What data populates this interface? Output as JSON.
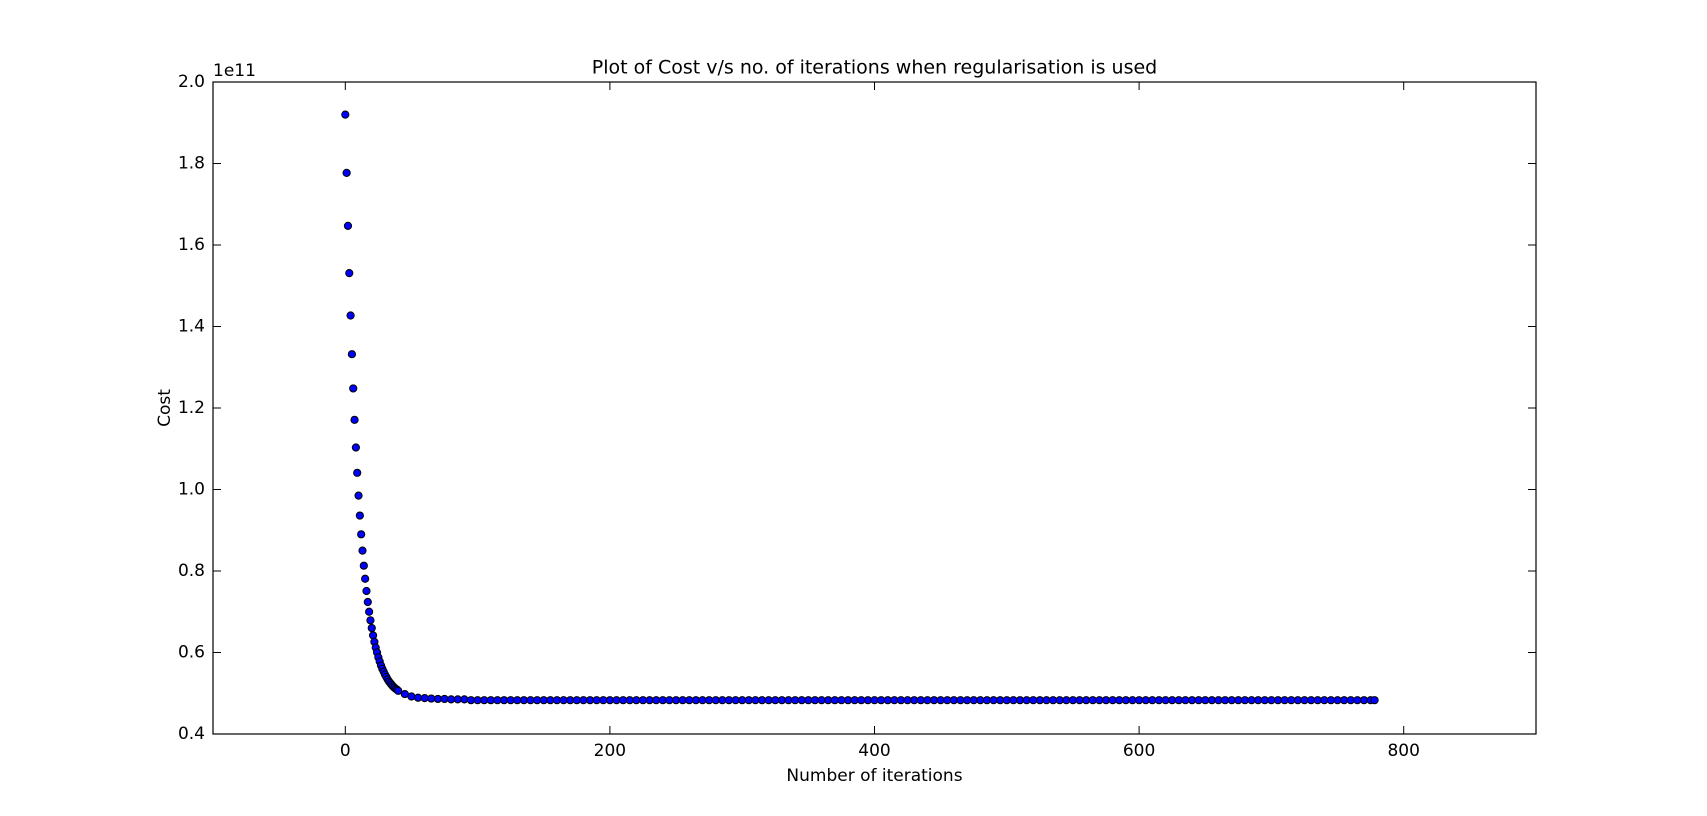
{
  "chart_data": {
    "type": "scatter",
    "title": "Plot of Cost v/s no. of iterations when regularisation is used",
    "x_label": "Number of iterations",
    "y_label": "Cost",
    "y_offset_label": "1e11",
    "color": "#0000ff",
    "edge_color": "#000000",
    "grid": false,
    "xlim": [
      -100,
      900
    ],
    "xticks": [
      0,
      200,
      400,
      600,
      800
    ],
    "ylim": [
      0.4,
      2.0
    ],
    "yticks": [
      0.4,
      0.6,
      0.8,
      {
        "value": 1.0,
        "label": "1.0"
      },
      1.2,
      1.4,
      1.6,
      1.8,
      {
        "value": 2.0,
        "label": "2.0"
      }
    ],
    "x": [
      0,
      1,
      2,
      3,
      4,
      5,
      6,
      7,
      8,
      9,
      10,
      11,
      12,
      13,
      14,
      15,
      16,
      17,
      18,
      19,
      20,
      21,
      22,
      23,
      24,
      25,
      26,
      27,
      28,
      29,
      30,
      31,
      32,
      33,
      34,
      35,
      36,
      37,
      38,
      39,
      40,
      45,
      50,
      55,
      60,
      65,
      70,
      75,
      80,
      85,
      90,
      95,
      100,
      105,
      110,
      115,
      120,
      125,
      130,
      135,
      140,
      145,
      150,
      155,
      160,
      165,
      170,
      175,
      180,
      185,
      190,
      195,
      200,
      205,
      210,
      215,
      220,
      225,
      230,
      235,
      240,
      245,
      250,
      255,
      260,
      265,
      270,
      275,
      280,
      285,
      290,
      295,
      300,
      305,
      310,
      315,
      320,
      325,
      330,
      335,
      340,
      345,
      350,
      355,
      360,
      365,
      370,
      375,
      380,
      385,
      390,
      395,
      400,
      405,
      410,
      415,
      420,
      425,
      430,
      435,
      440,
      445,
      450,
      455,
      460,
      465,
      470,
      475,
      480,
      485,
      490,
      495,
      500,
      505,
      510,
      515,
      520,
      525,
      530,
      535,
      540,
      545,
      550,
      555,
      560,
      565,
      570,
      575,
      580,
      585,
      590,
      595,
      600,
      605,
      610,
      615,
      620,
      625,
      630,
      635,
      640,
      645,
      650,
      655,
      660,
      665,
      670,
      675,
      680,
      685,
      690,
      695,
      700,
      705,
      710,
      715,
      720,
      725,
      730,
      735,
      740,
      745,
      750,
      755,
      760,
      765,
      770,
      775,
      778
    ],
    "values": [
      1.92,
      1.777,
      1.647,
      1.531,
      1.427,
      1.332,
      1.248,
      1.171,
      1.103,
      1.041,
      0.985,
      0.936,
      0.89,
      0.85,
      0.813,
      0.781,
      0.751,
      0.724,
      0.7,
      0.679,
      0.66,
      0.642,
      0.626,
      0.612,
      0.6,
      0.588,
      0.578,
      0.568,
      0.56,
      0.553,
      0.546,
      0.54,
      0.534,
      0.529,
      0.525,
      0.521,
      0.517,
      0.514,
      0.511,
      0.509,
      0.506,
      0.498,
      0.492,
      0.489,
      0.488,
      0.487,
      0.486,
      0.486,
      0.485,
      0.485,
      0.485,
      0.483,
      0.483,
      0.483,
      0.483,
      0.483,
      0.483,
      0.483,
      0.483,
      0.483,
      0.483,
      0.483,
      0.483,
      0.483,
      0.483,
      0.483,
      0.483,
      0.483,
      0.483,
      0.483,
      0.483,
      0.483,
      0.483,
      0.483,
      0.483,
      0.483,
      0.483,
      0.483,
      0.483,
      0.483,
      0.483,
      0.483,
      0.483,
      0.483,
      0.483,
      0.483,
      0.483,
      0.483,
      0.483,
      0.483,
      0.483,
      0.483,
      0.483,
      0.483,
      0.483,
      0.483,
      0.483,
      0.483,
      0.483,
      0.483,
      0.483,
      0.483,
      0.483,
      0.483,
      0.483,
      0.483,
      0.483,
      0.483,
      0.483,
      0.483,
      0.483,
      0.483,
      0.483,
      0.483,
      0.483,
      0.483,
      0.483,
      0.483,
      0.483,
      0.483,
      0.483,
      0.483,
      0.483,
      0.483,
      0.483,
      0.483,
      0.483,
      0.483,
      0.483,
      0.483,
      0.483,
      0.483,
      0.483,
      0.483,
      0.483,
      0.483,
      0.483,
      0.483,
      0.483,
      0.483,
      0.483,
      0.483,
      0.483,
      0.483,
      0.483,
      0.483,
      0.483,
      0.483,
      0.483,
      0.483,
      0.483,
      0.483,
      0.483,
      0.483,
      0.483,
      0.483,
      0.483,
      0.483,
      0.483,
      0.483,
      0.483,
      0.483,
      0.483,
      0.483,
      0.483,
      0.483,
      0.483,
      0.483,
      0.483,
      0.483,
      0.483,
      0.483,
      0.483,
      0.483,
      0.483,
      0.483,
      0.483,
      0.483,
      0.483,
      0.483,
      0.483,
      0.483,
      0.483,
      0.483,
      0.483,
      0.483,
      0.483,
      0.483,
      0.483
    ]
  }
}
